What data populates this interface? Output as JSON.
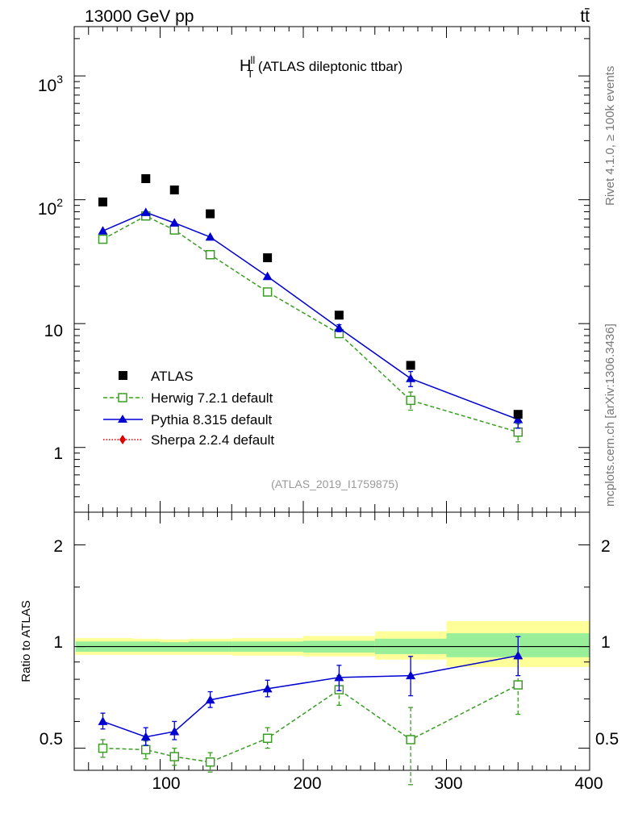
{
  "header": {
    "energy_label": "13000 GeV pp",
    "process_label": "tt̄"
  },
  "side_labels": {
    "rivet": "Rivet 4.1.0, ≥ 100k events",
    "mcplots": "mcplots.cern.ch [arXiv:1306.3436]"
  },
  "chart_data": [
    {
      "type": "scatter",
      "role": "main",
      "title_main": "H",
      "title_sup": "ll",
      "title_sub": "T",
      "title_rest": " (ATLAS dileptonic ttbar)",
      "watermark": "(ATLAS_2019_I1759875)",
      "yscale": "log",
      "ylim": [
        0.3,
        2500
      ],
      "xlim": [
        40,
        400
      ],
      "ytick_labels": [
        {
          "value": 1000,
          "base": "10",
          "exp": "3"
        },
        {
          "value": 100,
          "base": "10",
          "exp": "2"
        },
        {
          "value": 10,
          "base": "10",
          "exp": ""
        },
        {
          "value": 1,
          "base": "1",
          "exp": ""
        }
      ],
      "legend_position": "bottom-left",
      "series": [
        {
          "name": "ATLAS",
          "color": "#000000",
          "marker": "filled-square",
          "line": "none",
          "x": [
            60,
            90,
            110,
            135,
            175,
            225,
            275,
            350
          ],
          "y": [
            96,
            148,
            120,
            77,
            34,
            11.7,
            4.6,
            1.85
          ],
          "yerr": [
            0,
            0,
            0,
            0,
            0,
            0,
            0,
            0
          ]
        },
        {
          "name": "Herwig 7.2.1 default",
          "color": "#3a9d23",
          "marker": "open-square",
          "line": "dashed",
          "x": [
            60,
            90,
            110,
            135,
            175,
            225,
            275,
            350
          ],
          "y": [
            48,
            74,
            57,
            36,
            18,
            8.3,
            2.4,
            1.33
          ],
          "yerr": [
            0,
            0,
            0,
            0,
            0,
            0.5,
            0.4,
            0.22
          ]
        },
        {
          "name": "Pythia 8.315 default",
          "color": "#0000d0",
          "marker": "filled-triangle",
          "line": "solid",
          "x": [
            60,
            90,
            110,
            135,
            175,
            225,
            275,
            350
          ],
          "y": [
            56,
            79,
            65,
            50,
            24,
            9.2,
            3.6,
            1.68
          ],
          "yerr": [
            0,
            0,
            0,
            0,
            0,
            0.6,
            0.5,
            0.25
          ]
        },
        {
          "name": "Sherpa 2.2.4 default",
          "color": "#e00000",
          "marker": "filled-diamond",
          "line": "dotted",
          "x": [],
          "y": [],
          "yerr": []
        }
      ]
    },
    {
      "type": "scatter",
      "role": "ratio",
      "ylabel": "Ratio to ATLAS",
      "yscale": "log",
      "ylim": [
        0.43,
        2.5
      ],
      "xlim": [
        40,
        400
      ],
      "ytick_labels": [
        {
          "value": 2,
          "label": "2"
        },
        {
          "value": 1,
          "label": "1"
        },
        {
          "value": 0.5,
          "label": "0.5"
        }
      ],
      "xtick_labels": [
        {
          "value": 100,
          "label": "100"
        },
        {
          "value": 200,
          "label": "200"
        },
        {
          "value": 300,
          "label": "300"
        },
        {
          "value": 400,
          "label": "400"
        }
      ],
      "bands": {
        "yellow_color": "#ffff99",
        "green_color": "#99ee99",
        "bins": [
          {
            "xlo": 40,
            "xhi": 80,
            "yellow": [
              0.945,
              1.06
            ],
            "green": [
              0.965,
              1.035
            ]
          },
          {
            "xlo": 80,
            "xhi": 100,
            "yellow": [
              0.945,
              1.055
            ],
            "green": [
              0.965,
              1.035
            ]
          },
          {
            "xlo": 100,
            "xhi": 120,
            "yellow": [
              0.945,
              1.05
            ],
            "green": [
              0.965,
              1.03
            ]
          },
          {
            "xlo": 120,
            "xhi": 150,
            "yellow": [
              0.945,
              1.055
            ],
            "green": [
              0.965,
              1.035
            ]
          },
          {
            "xlo": 150,
            "xhi": 200,
            "yellow": [
              0.94,
              1.06
            ],
            "green": [
              0.965,
              1.035
            ]
          },
          {
            "xlo": 200,
            "xhi": 250,
            "yellow": [
              0.935,
              1.075
            ],
            "green": [
              0.96,
              1.04
            ]
          },
          {
            "xlo": 250,
            "xhi": 300,
            "yellow": [
              0.915,
              1.11
            ],
            "green": [
              0.95,
              1.055
            ]
          },
          {
            "xlo": 300,
            "xhi": 400,
            "yellow": [
              0.87,
              1.19
            ],
            "green": [
              0.93,
              1.095
            ]
          }
        ]
      },
      "series": [
        {
          "name": "Herwig 7.2.1 default",
          "color": "#3a9d23",
          "marker": "open-square",
          "line": "dashed",
          "x": [
            60,
            90,
            110,
            135,
            175,
            225,
            275,
            350
          ],
          "y": [
            0.5,
            0.495,
            0.472,
            0.455,
            0.535,
            0.745,
            0.53,
            0.77
          ],
          "ylo": [
            0.47,
            0.465,
            0.445,
            0.425,
            0.5,
            0.67,
            0.39,
            0.63
          ],
          "yhi": [
            0.53,
            0.525,
            0.5,
            0.485,
            0.575,
            0.82,
            0.66,
            0.92
          ]
        },
        {
          "name": "Pythia 8.315 default",
          "color": "#0000d0",
          "marker": "filled-triangle",
          "line": "solid",
          "x": [
            60,
            90,
            110,
            135,
            175,
            225,
            275,
            350
          ],
          "y": [
            0.6,
            0.54,
            0.56,
            0.695,
            0.75,
            0.81,
            0.82,
            0.94
          ],
          "ylo": [
            0.57,
            0.51,
            0.53,
            0.66,
            0.71,
            0.74,
            0.715,
            0.82
          ],
          "yhi": [
            0.635,
            0.575,
            0.6,
            0.735,
            0.795,
            0.88,
            0.935,
            1.07
          ]
        }
      ]
    }
  ]
}
